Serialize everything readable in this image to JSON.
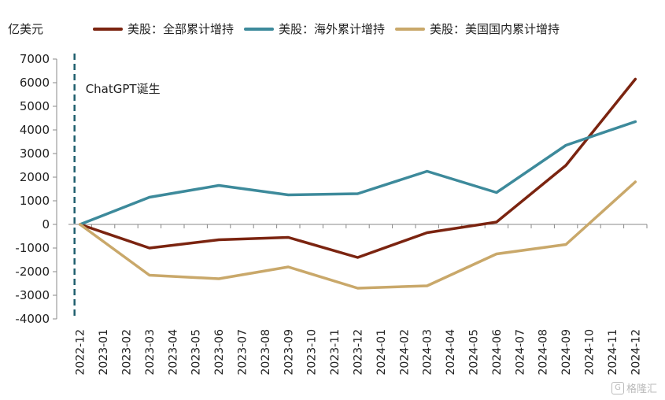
{
  "chart_data": {
    "type": "line",
    "ylabel": "亿美元",
    "ylim": [
      -4000,
      7000
    ],
    "yticks": [
      7000,
      6000,
      5000,
      4000,
      3000,
      2000,
      1000,
      0,
      -1000,
      -2000,
      -3000,
      -4000
    ],
    "categories": [
      "2022-12",
      "2023-01",
      "2023-02",
      "2023-03",
      "2023-04",
      "2023-05",
      "2023-06",
      "2023-07",
      "2023-08",
      "2023-09",
      "2023-10",
      "2023-11",
      "2023-12",
      "2024-01",
      "2024-02",
      "2024-03",
      "2024-04",
      "2024-05",
      "2024-06",
      "2024-07",
      "2024-08",
      "2024-09",
      "2024-10",
      "2024-11",
      "2024-12"
    ],
    "series": [
      {
        "name": "美股：全部累计增持",
        "color": "#7b2410",
        "points": [
          [
            "2022-12",
            0
          ],
          [
            "2023-03",
            -1000
          ],
          [
            "2023-06",
            -650
          ],
          [
            "2023-09",
            -550
          ],
          [
            "2023-12",
            -1400
          ],
          [
            "2024-03",
            -350
          ],
          [
            "2024-06",
            100
          ],
          [
            "2024-09",
            2500
          ],
          [
            "2024-12",
            6150
          ]
        ]
      },
      {
        "name": "美股：海外累计增持",
        "color": "#3d8a9b",
        "points": [
          [
            "2022-12",
            0
          ],
          [
            "2023-03",
            1150
          ],
          [
            "2023-06",
            1650
          ],
          [
            "2023-09",
            1250
          ],
          [
            "2023-12",
            1300
          ],
          [
            "2024-03",
            2250
          ],
          [
            "2024-06",
            1350
          ],
          [
            "2024-09",
            3350
          ],
          [
            "2024-12",
            4350
          ]
        ]
      },
      {
        "name": "美股：美国国内累计增持",
        "color": "#c9a86a",
        "points": [
          [
            "2022-12",
            0
          ],
          [
            "2023-03",
            -2150
          ],
          [
            "2023-06",
            -2300
          ],
          [
            "2023-09",
            -1800
          ],
          [
            "2023-12",
            -2700
          ],
          [
            "2024-03",
            -2600
          ],
          [
            "2024-06",
            -1250
          ],
          [
            "2024-09",
            -850
          ],
          [
            "2024-12",
            1800
          ]
        ]
      }
    ],
    "annotation": {
      "text": "ChatGPT诞生",
      "at": "2022-12"
    },
    "grid": false,
    "legend": "top"
  },
  "watermark": {
    "text": "格隆汇"
  }
}
